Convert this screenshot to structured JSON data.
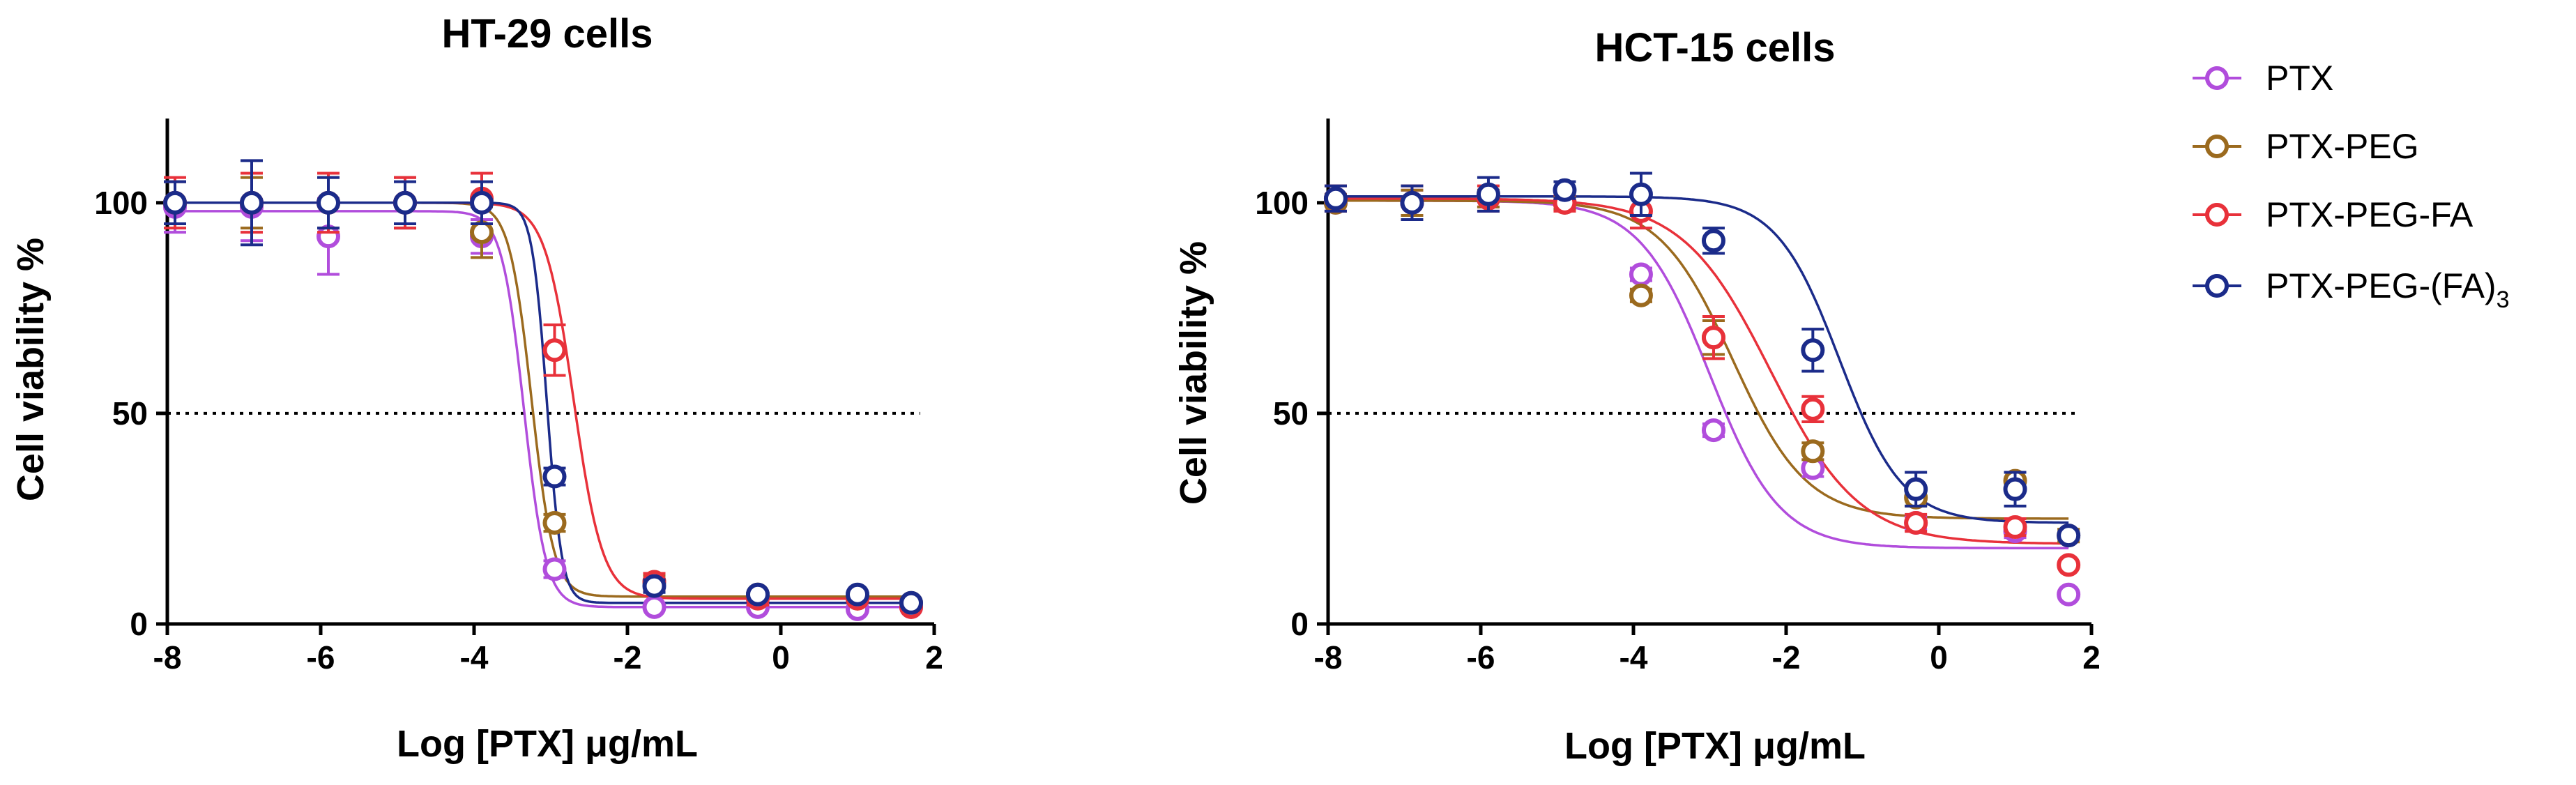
{
  "chart_data": [
    {
      "type": "scatter",
      "title": "HT-29 cells",
      "xlabel": "Log [PTX] μg/mL",
      "ylabel": "Cell viability %",
      "xlim": [
        -8,
        2
      ],
      "ylim": [
        0,
        120
      ],
      "xticks": [
        -8,
        -6,
        -4,
        -2,
        0,
        2
      ],
      "xtick_labels": [
        "-8",
        "-6",
        "-4",
        "-2",
        "0",
        "2"
      ],
      "yticks": [
        0,
        50,
        100
      ],
      "ytick_labels": [
        "0",
        "50",
        "100"
      ],
      "reference_line": {
        "y": 50,
        "style": "dotted"
      },
      "x": [
        -7.9,
        -6.9,
        -5.9,
        -4.9,
        -3.9,
        -2.95,
        -1.65,
        -0.3,
        1.0,
        1.7
      ],
      "series": [
        {
          "name": "PTX",
          "color": "#b14ddc",
          "values": [
            99,
            99,
            92,
            100,
            92,
            13,
            4,
            4,
            3.5,
            4
          ],
          "errors": [
            6,
            8,
            9,
            6,
            4,
            2,
            1,
            1,
            1,
            1
          ],
          "fit": {
            "top": 98,
            "bottom": 4,
            "logec50": -3.35,
            "hill": -3.0
          }
        },
        {
          "name": "PTX-PEG",
          "color": "#9b6a1e",
          "values": [
            100,
            100,
            100,
            100,
            93,
            24,
            10,
            7,
            6,
            5
          ],
          "errors": [
            5,
            6,
            6,
            6,
            6,
            2,
            1.5,
            1,
            1,
            1
          ],
          "fit": {
            "top": 100,
            "bottom": 6.5,
            "logec50": -3.25,
            "hill": -3.0
          }
        },
        {
          "name": "PTX-PEG-FA",
          "color": "#e8313a",
          "values": [
            100,
            100,
            100,
            100,
            101,
            65,
            10,
            6,
            6,
            4
          ],
          "errors": [
            6,
            7,
            7,
            6,
            6,
            6,
            2,
            1.5,
            1,
            1
          ],
          "fit": {
            "top": 100,
            "bottom": 6,
            "logec50": -2.7,
            "hill": -2.3
          }
        },
        {
          "name": "PTX-PEG-(FA)3",
          "color": "#1b2b8a",
          "values": [
            100,
            100,
            100,
            100,
            100,
            35,
            9,
            7,
            7,
            5
          ],
          "errors": [
            5,
            10,
            6,
            5,
            5,
            2,
            1.5,
            1,
            1,
            1
          ],
          "fit": {
            "top": 100,
            "bottom": 5,
            "logec50": -3.05,
            "hill": -4.5
          }
        }
      ]
    },
    {
      "type": "scatter",
      "title": "HCT-15 cells",
      "xlabel": "Log [PTX] μg/mL",
      "ylabel": "Cell viability %",
      "xlim": [
        -8,
        2
      ],
      "ylim": [
        0,
        120
      ],
      "xticks": [
        -8,
        -6,
        -4,
        -2,
        0,
        2
      ],
      "xtick_labels": [
        "-8",
        "-6",
        "-4",
        "-2",
        "0",
        "2"
      ],
      "yticks": [
        0,
        50,
        100
      ],
      "ytick_labels": [
        "0",
        "50",
        "100"
      ],
      "reference_line": {
        "y": 50,
        "style": "dotted"
      },
      "x": [
        -7.9,
        -6.9,
        -5.9,
        -4.9,
        -3.9,
        -2.95,
        -1.65,
        -0.3,
        1.0,
        1.7
      ],
      "series": [
        {
          "name": "PTX",
          "color": "#b14ddc",
          "values": [
            100,
            100,
            101,
            100,
            83,
            46,
            37,
            24,
            22,
            7
          ],
          "errors": [
            2,
            3,
            2,
            1.5,
            1.5,
            1.5,
            2,
            1.5,
            1.5,
            1
          ],
          "fit": {
            "top": 100.5,
            "bottom": 18,
            "logec50": -3.0,
            "hill": -0.95
          }
        },
        {
          "name": "PTX-PEG",
          "color": "#9b6a1e",
          "values": [
            100,
            100,
            101,
            100,
            78,
            68,
            41,
            30,
            34,
            21
          ],
          "errors": [
            2,
            3,
            2,
            1.5,
            1.5,
            4,
            2,
            2,
            2,
            1.5
          ],
          "fit": {
            "top": 100.5,
            "bottom": 25,
            "logec50": -2.7,
            "hill": -0.9
          }
        },
        {
          "name": "PTX-PEG-FA",
          "color": "#e8313a",
          "values": [
            101,
            100,
            101,
            100,
            98,
            68,
            51,
            24,
            23,
            14
          ],
          "errors": [
            3,
            4,
            3,
            2,
            4,
            5,
            3,
            2,
            2,
            1
          ],
          "fit": {
            "top": 101,
            "bottom": 19,
            "logec50": -2.2,
            "hill": -0.75
          }
        },
        {
          "name": "PTX-PEG-(FA)3",
          "color": "#1b2b8a",
          "values": [
            101,
            100,
            102,
            103,
            102,
            91,
            65,
            32,
            32,
            21
          ],
          "errors": [
            3,
            4,
            4,
            2,
            5,
            3,
            5,
            4,
            4,
            1
          ],
          "fit": {
            "top": 101.5,
            "bottom": 24,
            "logec50": -1.3,
            "hill": -1.05
          }
        }
      ]
    }
  ],
  "legend": {
    "items": [
      {
        "label": "PTX",
        "color": "#b14ddc"
      },
      {
        "label": "PTX-PEG",
        "color": "#9b6a1e"
      },
      {
        "label": "PTX-PEG-FA",
        "color": "#e8313a"
      },
      {
        "label": "PTX-PEG-(FA)",
        "subscript": "3",
        "color": "#1b2b8a"
      }
    ]
  }
}
